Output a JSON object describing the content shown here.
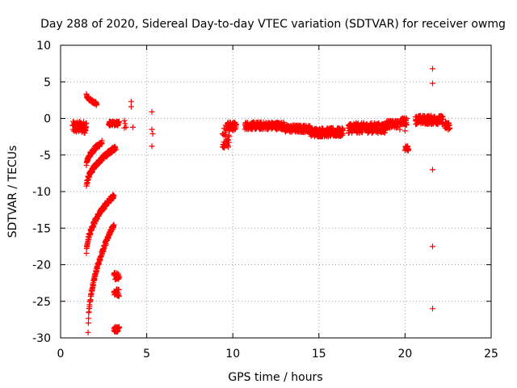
{
  "chart_data": {
    "type": "scatter",
    "title": "Day 288 of 2020, Sidereal Day-to-day VTEC variation (SDTVAR) for receiver owmg",
    "xlabel": "GPS time / hours",
    "ylabel": "SDTVAR / TECUs",
    "xlim": [
      0,
      25
    ],
    "ylim": [
      -30,
      10
    ],
    "grid": true,
    "marker": "+",
    "color": "#ff0000",
    "x_ticks": [
      0,
      5,
      10,
      15,
      20,
      25
    ],
    "y_ticks": [
      -30,
      -25,
      -20,
      -15,
      -10,
      -5,
      0,
      5,
      10
    ],
    "x_tick_labels": [
      "0",
      "5",
      "10",
      "15",
      "20",
      "25"
    ],
    "y_tick_labels": [
      "-30",
      "-25",
      "-20",
      "-15",
      "-10",
      "-5",
      "0",
      "5",
      "10"
    ],
    "series": [
      {
        "name": "SDTVAR",
        "segments": [
          {
            "x": [
              0.7,
              1.5
            ],
            "y_center": -1.2,
            "spread": 0.8
          },
          {
            "x": [
              1.5,
              2.1
            ],
            "y_start": 3.3,
            "y_end": 2.0,
            "spread": 0.2
          },
          {
            "x": [
              1.5,
              2.4
            ],
            "y_start": -6.5,
            "y_end": -3.3,
            "spread": 0.3
          },
          {
            "x": [
              1.5,
              3.2
            ],
            "y_start": -9.5,
            "y_end": -4.0,
            "spread": 0.3
          },
          {
            "x": [
              1.5,
              3.1
            ],
            "y_start": -18.5,
            "y_end": -10.5,
            "spread": 0.3
          },
          {
            "x": [
              1.6,
              3.1
            ],
            "y_start": -29.0,
            "y_end": -14.5,
            "spread": 0.3
          },
          {
            "x": [
              2.8,
              3.4
            ],
            "y_center": -0.7,
            "spread": 0.3
          },
          {
            "x": [
              3.1,
              3.4
            ],
            "y_center": -21.5,
            "spread": 0.5
          },
          {
            "x": [
              3.1,
              3.4
            ],
            "y_center": -23.8,
            "spread": 0.5
          },
          {
            "x": [
              3.1,
              3.4
            ],
            "y_center": -28.8,
            "spread": 0.4
          },
          {
            "x": [
              9.4,
              9.8
            ],
            "y_center": -2.2,
            "spread": 1.8
          },
          {
            "x": [
              9.7,
              10.2
            ],
            "y_center": -1.1,
            "spread": 0.6
          },
          {
            "x": [
              10.7,
              13.0
            ],
            "y_center": -1.0,
            "spread": 0.5
          },
          {
            "x": [
              13.0,
              14.5
            ],
            "y_center": -1.4,
            "spread": 0.5
          },
          {
            "x": [
              14.5,
              16.4
            ],
            "y_center": -1.9,
            "spread": 0.6
          },
          {
            "x": [
              16.7,
              18.9
            ],
            "y_center": -1.3,
            "spread": 0.7
          },
          {
            "x": [
              18.9,
              19.6
            ],
            "y_center": -0.8,
            "spread": 0.5
          },
          {
            "x": [
              19.7,
              20.1
            ],
            "y_center": -0.4,
            "spread": 0.5
          },
          {
            "x": [
              20.6,
              22.2
            ],
            "y_center": -0.2,
            "spread": 0.6
          },
          {
            "x": [
              22.3,
              22.6
            ],
            "y_center": -1.0,
            "spread": 0.6
          },
          {
            "x": [
              20.0,
              20.2
            ],
            "y_center": -4.1,
            "spread": 0.4
          }
        ],
        "points": [
          [
            3.7,
            -0.3
          ],
          [
            3.7,
            -1.3
          ],
          [
            3.75,
            -0.7
          ],
          [
            3.8,
            -1.2
          ],
          [
            4.1,
            2.3
          ],
          [
            4.1,
            1.6
          ],
          [
            4.2,
            -1.2
          ],
          [
            5.3,
            0.9
          ],
          [
            5.3,
            -1.5
          ],
          [
            5.35,
            -2.1
          ],
          [
            5.3,
            -3.8
          ],
          [
            19.7,
            -1.5
          ],
          [
            20.0,
            -1.7
          ],
          [
            21.6,
            6.8
          ],
          [
            21.6,
            4.8
          ],
          [
            21.6,
            -7.0
          ],
          [
            21.6,
            -17.5
          ],
          [
            21.6,
            -26.0
          ]
        ]
      }
    ]
  }
}
